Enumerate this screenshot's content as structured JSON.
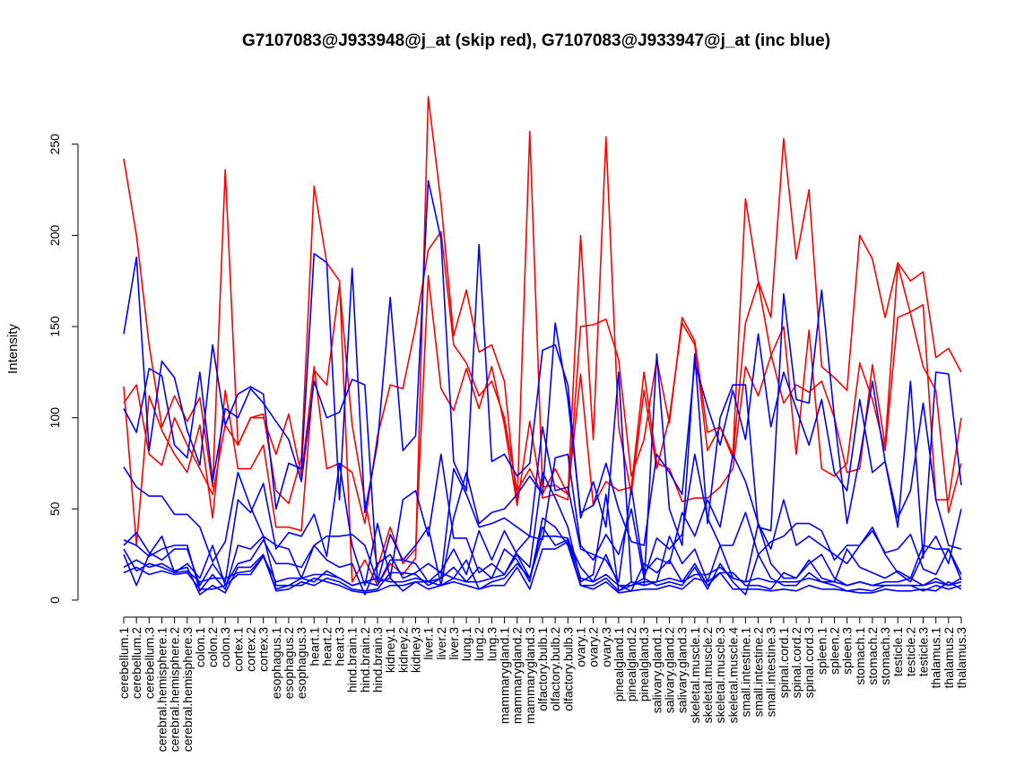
{
  "chart_data": {
    "type": "line",
    "title": "G7107083@J933948@j_at (skip red), G7107083@J933947@j_at (inc blue)",
    "xlabel": "",
    "ylabel": "Intensity",
    "ylim": [
      0,
      280
    ],
    "yticks": [
      0,
      50,
      100,
      150,
      200,
      250
    ],
    "grid": false,
    "legend": "none",
    "categories": [
      "cerebellum.1",
      "cerebellum.2",
      "cerebellum.3",
      "cerebral.hemisphere.1",
      "cerebral.hemisphere.2",
      "cerebral.hemisphere.3",
      "colon.1",
      "colon.2",
      "colon.3",
      "cortex.1",
      "cortex.2",
      "cortex.3",
      "esophagus.1",
      "esophagus.2",
      "esophagus.3",
      "heart.1",
      "heart.2",
      "heart.3",
      "hind.brain.1",
      "hind.brain.2",
      "hind.brain.3",
      "kidney.1",
      "kidney.2",
      "kidney.3",
      "liver.1",
      "liver.2",
      "liver.3",
      "lung.1",
      "lung.2",
      "lung.3",
      "mammarygland.1",
      "mammarygland.2",
      "mammarygland.3",
      "olfactory.bulb.1",
      "olfactory.bulb.2",
      "olfactory.bulb.3",
      "ovary.1",
      "ovary.2",
      "ovary.3",
      "pinealgland.1",
      "pinealgland.2",
      "pinealgland.3",
      "salivary.gland.1",
      "salivary.gland.2",
      "salivary.gland.3",
      "skeletal.muscle.1",
      "skeletal.muscle.2",
      "skeletal.muscle.3",
      "skeletal.muscle.4",
      "small.intestine.1",
      "small.intestine.2",
      "small.intestine.3",
      "spinal.cord.1",
      "spinal.cord.2",
      "spinal.cord.3",
      "spleen.1",
      "spleen.2",
      "spleen.3",
      "stomach.1",
      "stomach.2",
      "stomach.3",
      "testicle.1",
      "testicle.2",
      "testicle.3",
      "thalamus.1",
      "thalamus.2",
      "thalamus.3"
    ],
    "colors": {
      "skip": "#ff0000",
      "inc": "#0000ff"
    },
    "series": [
      {
        "group": "skip",
        "values": [
          242,
          200,
          140,
          95,
          112,
          98,
          111,
          62,
          236,
          85,
          100,
          102,
          60,
          53,
          78,
          227,
          185,
          175,
          10,
          22,
          8,
          20,
          14,
          23,
          276,
          218,
          145,
          170,
          136,
          140,
          120,
          52,
          257,
          62,
          63,
          58,
          200,
          88,
          254,
          95,
          58,
          115,
          72,
          100,
          152,
          140,
          82,
          95,
          80,
          220,
          175,
          155,
          253,
          187,
          225,
          128,
          122,
          115,
          200,
          187,
          155,
          185,
          175,
          180,
          133,
          138,
          125
        ]
      },
      {
        "group": "skip",
        "values": [
          117,
          30,
          112,
          93,
          80,
          70,
          96,
          45,
          115,
          72,
          72,
          85,
          40,
          40,
          38,
          126,
          118,
          173,
          96,
          55,
          18,
          40,
          20,
          28,
          178,
          116,
          104,
          127,
          105,
          128,
          96,
          52,
          98,
          56,
          58,
          55,
          150,
          151,
          154,
          132,
          68,
          88,
          132,
          97,
          155,
          142,
          92,
          95,
          78,
          152,
          174,
          135,
          108,
          118,
          114,
          120,
          100,
          70,
          72,
          129,
          85,
          184,
          157,
          128,
          115,
          48,
          75
        ]
      },
      {
        "group": "skip",
        "values": [
          108,
          118,
          80,
          74,
          100,
          85,
          72,
          58,
          96,
          85,
          100,
          100,
          80,
          102,
          68,
          128,
          72,
          75,
          70,
          42,
          90,
          118,
          116,
          150,
          192,
          202,
          140,
          130,
          112,
          120,
          100,
          60,
          72,
          58,
          72,
          58,
          124,
          52,
          65,
          60,
          62,
          125,
          75,
          72,
          54,
          56,
          56,
          62,
          72,
          128,
          112,
          134,
          150,
          80,
          148,
          72,
          68,
          75,
          130,
          110,
          82,
          155,
          158,
          162,
          55,
          55,
          100
        ]
      },
      {
        "group": "inc",
        "values": [
          146,
          188,
          82,
          131,
          122,
          93,
          74,
          140,
          96,
          113,
          117,
          113,
          50,
          75,
          72,
          190,
          185,
          55,
          182,
          48,
          86,
          166,
          82,
          90,
          230,
          198,
          76,
          60,
          195,
          76,
          80,
          68,
          75,
          137,
          140,
          118,
          45,
          65,
          40,
          125,
          10,
          8,
          135,
          50,
          30,
          135,
          42,
          100,
          118,
          118,
          40,
          38,
          168,
          110,
          108,
          170,
          100,
          42,
          78,
          120,
          76,
          40,
          120,
          23,
          125,
          124,
          63
        ]
      },
      {
        "group": "inc",
        "values": [
          105,
          92,
          127,
          123,
          85,
          78,
          125,
          65,
          105,
          100,
          116,
          108,
          98,
          88,
          65,
          120,
          100,
          103,
          121,
          118,
          10,
          36,
          22,
          30,
          40,
          8,
          45,
          70,
          42,
          48,
          50,
          58,
          68,
          58,
          152,
          110,
          48,
          52,
          75,
          50,
          32,
          30,
          80,
          70,
          58,
          130,
          106,
          85,
          115,
          88,
          146,
          95,
          125,
          105,
          85,
          110,
          70,
          60,
          110,
          70,
          76,
          45,
          60,
          108,
          55,
          30,
          28
        ]
      },
      {
        "group": "inc",
        "values": [
          73,
          62,
          57,
          57,
          47,
          47,
          40,
          21,
          32,
          70,
          51,
          35,
          30,
          28,
          12,
          30,
          35,
          35,
          36,
          30,
          10,
          12,
          5,
          10,
          10,
          12,
          72,
          58,
          40,
          42,
          45,
          40,
          35,
          95,
          60,
          62,
          28,
          25,
          22,
          10,
          62,
          15,
          23,
          20,
          48,
          35,
          55,
          40,
          80,
          65,
          42,
          28,
          55,
          30,
          35,
          30,
          25,
          20,
          30,
          40,
          25,
          15,
          10,
          25,
          35,
          20,
          50
        ]
      },
      {
        "group": "inc",
        "values": [
          30,
          37,
          26,
          22,
          28,
          28,
          8,
          20,
          10,
          55,
          48,
          64,
          28,
          37,
          35,
          47,
          24,
          75,
          30,
          8,
          42,
          12,
          55,
          60,
          35,
          80,
          34,
          34,
          15,
          20,
          14,
          27,
          35,
          33,
          78,
          80,
          30,
          22,
          36,
          25,
          50,
          12,
          34,
          28,
          36,
          80,
          45,
          30,
          30,
          48,
          25,
          32,
          35,
          42,
          42,
          38,
          22,
          30,
          30,
          38,
          26,
          28,
          36,
          17,
          14,
          28,
          11
        ]
      },
      {
        "group": "inc",
        "values": [
          33,
          30,
          24,
          28,
          30,
          30,
          5,
          14,
          6,
          30,
          28,
          35,
          8,
          8,
          12,
          10,
          16,
          12,
          8,
          10,
          8,
          22,
          22,
          20,
          10,
          16,
          28,
          14,
          38,
          22,
          38,
          25,
          18,
          70,
          56,
          40,
          10,
          14,
          58,
          5,
          10,
          8,
          10,
          35,
          20,
          28,
          10,
          30,
          12,
          10,
          42,
          20,
          12,
          12,
          22,
          12,
          10,
          28,
          18,
          15,
          12,
          16,
          12,
          30,
          28,
          28,
          14
        ]
      },
      {
        "group": "inc",
        "values": [
          25,
          8,
          25,
          35,
          15,
          20,
          12,
          30,
          8,
          20,
          22,
          33,
          20,
          20,
          18,
          30,
          22,
          18,
          20,
          3,
          20,
          25,
          12,
          15,
          20,
          15,
          12,
          22,
          6,
          10,
          12,
          20,
          12,
          40,
          30,
          33,
          18,
          10,
          25,
          8,
          5,
          20,
          15,
          22,
          10,
          20,
          8,
          15,
          15,
          8,
          8,
          6,
          15,
          12,
          20,
          25,
          12,
          8,
          10,
          8,
          10,
          10,
          12,
          8,
          12,
          8,
          12
        ]
      },
      {
        "group": "inc",
        "values": [
          18,
          22,
          18,
          20,
          16,
          18,
          3,
          8,
          4,
          18,
          18,
          25,
          5,
          6,
          10,
          8,
          12,
          10,
          6,
          5,
          6,
          15,
          15,
          14,
          8,
          12,
          18,
          10,
          18,
          12,
          28,
          22,
          10,
          45,
          40,
          30,
          8,
          8,
          12,
          5,
          8,
          12,
          8,
          10,
          8,
          18,
          6,
          20,
          10,
          3,
          25,
          12,
          8,
          8,
          15,
          10,
          8,
          5,
          6,
          5,
          8,
          8,
          8,
          5,
          8,
          6,
          8
        ]
      },
      {
        "group": "inc",
        "values": [
          15,
          18,
          14,
          16,
          14,
          15,
          6,
          6,
          8,
          14,
          14,
          24,
          6,
          8,
          8,
          12,
          10,
          8,
          5,
          4,
          5,
          8,
          8,
          10,
          6,
          8,
          10,
          8,
          6,
          8,
          8,
          18,
          6,
          28,
          28,
          32,
          8,
          6,
          10,
          4,
          5,
          6,
          6,
          8,
          6,
          12,
          10,
          15,
          6,
          6,
          6,
          5,
          6,
          5,
          8,
          6,
          6,
          5,
          4,
          4,
          6,
          5,
          5,
          6,
          5,
          10,
          6
        ]
      },
      {
        "group": "inc",
        "values": [
          28,
          16,
          20,
          18,
          15,
          16,
          10,
          12,
          12,
          15,
          16,
          24,
          10,
          12,
          12,
          14,
          14,
          12,
          8,
          10,
          12,
          10,
          10,
          12,
          10,
          8,
          12,
          10,
          10,
          12,
          14,
          25,
          12,
          35,
          35,
          34,
          12,
          10,
          14,
          8,
          8,
          10,
          10,
          12,
          10,
          14,
          14,
          18,
          12,
          10,
          12,
          10,
          10,
          10,
          12,
          10,
          10,
          8,
          10,
          8,
          8,
          8,
          8,
          8,
          10,
          8,
          10
        ]
      }
    ]
  }
}
